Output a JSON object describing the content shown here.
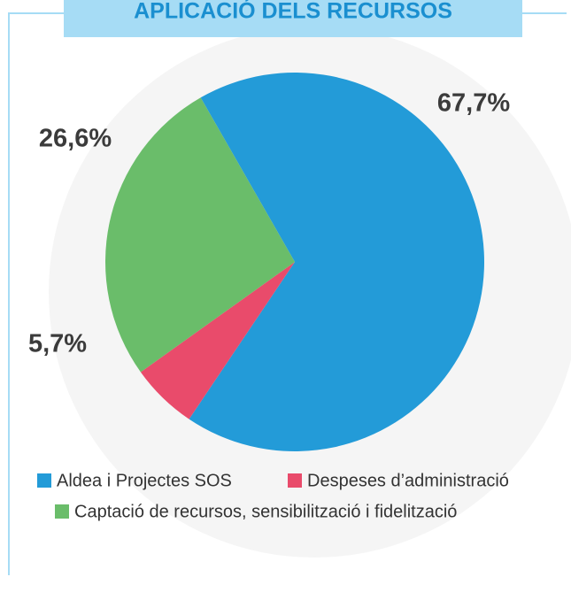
{
  "chart_data": {
    "type": "pie",
    "title": "APLICACIÓ DELS RECURSOS",
    "categories": [
      "Aldea i Projectes SOS",
      "Despeses d’administració",
      "Captació de recursos, sensibilització i fidelització"
    ],
    "values": [
      67.7,
      5.7,
      26.6
    ],
    "value_labels": [
      "67,7%",
      "5,7%",
      "26,6%"
    ],
    "colors": [
      "#239bd8",
      "#e94b6b",
      "#6abd6a"
    ]
  }
}
